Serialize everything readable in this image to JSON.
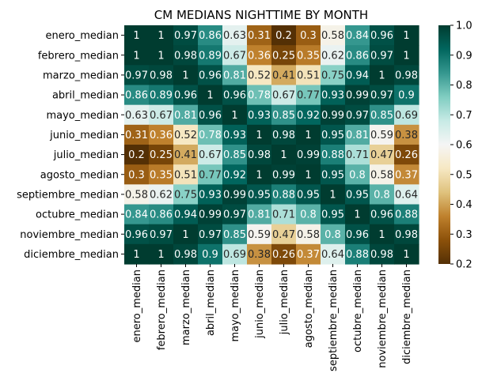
{
  "chart_data": {
    "type": "heatmap",
    "title": "CM MEDIANS NIGHTTIME BY MONTH",
    "xlabel": "",
    "ylabel": "",
    "row_labels": [
      "enero_median",
      "febrero_median",
      "marzo_median",
      "abril_median",
      "mayo_median",
      "junio_median",
      "julio_median",
      "agosto_median",
      "septiembre_median",
      "octubre_median",
      "noviembre_median",
      "diciembre_median"
    ],
    "col_labels": [
      "enero_median",
      "febrero_median",
      "marzo_median",
      "abril_median",
      "mayo_median",
      "junio_median",
      "julio_median",
      "agosto_median",
      "septiembre_median",
      "octubre_median",
      "noviembre_median",
      "diciembre_median"
    ],
    "values": [
      [
        1,
        1,
        0.97,
        0.86,
        0.63,
        0.31,
        0.2,
        0.3,
        0.58,
        0.84,
        0.96,
        1
      ],
      [
        1,
        1,
        0.98,
        0.89,
        0.67,
        0.36,
        0.25,
        0.35,
        0.62,
        0.86,
        0.97,
        1
      ],
      [
        0.97,
        0.98,
        1,
        0.96,
        0.81,
        0.52,
        0.41,
        0.51,
        0.75,
        0.94,
        1,
        0.98
      ],
      [
        0.86,
        0.89,
        0.96,
        1,
        0.96,
        0.78,
        0.67,
        0.77,
        0.93,
        0.99,
        0.97,
        0.9
      ],
      [
        0.63,
        0.67,
        0.81,
        0.96,
        1,
        0.93,
        0.85,
        0.92,
        0.99,
        0.97,
        0.85,
        0.69
      ],
      [
        0.31,
        0.36,
        0.52,
        0.78,
        0.93,
        1,
        0.98,
        1,
        0.95,
        0.81,
        0.59,
        0.38
      ],
      [
        0.2,
        0.25,
        0.41,
        0.67,
        0.85,
        0.98,
        1,
        0.99,
        0.88,
        0.71,
        0.47,
        0.26
      ],
      [
        0.3,
        0.35,
        0.51,
        0.77,
        0.92,
        1,
        0.99,
        1,
        0.95,
        0.8,
        0.58,
        0.37
      ],
      [
        0.58,
        0.62,
        0.75,
        0.93,
        0.99,
        0.95,
        0.88,
        0.95,
        1,
        0.95,
        0.8,
        0.64
      ],
      [
        0.84,
        0.86,
        0.94,
        0.99,
        0.97,
        0.81,
        0.71,
        0.8,
        0.95,
        1,
        0.96,
        0.88
      ],
      [
        0.96,
        0.97,
        1,
        0.97,
        0.85,
        0.59,
        0.47,
        0.58,
        0.8,
        0.96,
        1,
        0.98
      ],
      [
        1,
        1,
        0.98,
        0.9,
        0.69,
        0.38,
        0.26,
        0.37,
        0.64,
        0.88,
        0.98,
        1
      ]
    ],
    "vmin": 0.2,
    "vmax": 1.0,
    "colormap": "BrBG",
    "colorbar_ticks": [
      0.2,
      0.3,
      0.4,
      0.5,
      0.6,
      0.7,
      0.8,
      0.9,
      1.0
    ],
    "colorbar_tick_labels": [
      "0.2",
      "0.3",
      "0.4",
      "0.5",
      "0.6",
      "0.7",
      "0.8",
      "0.9",
      "1.0"
    ],
    "annotations": true,
    "grid": false
  }
}
